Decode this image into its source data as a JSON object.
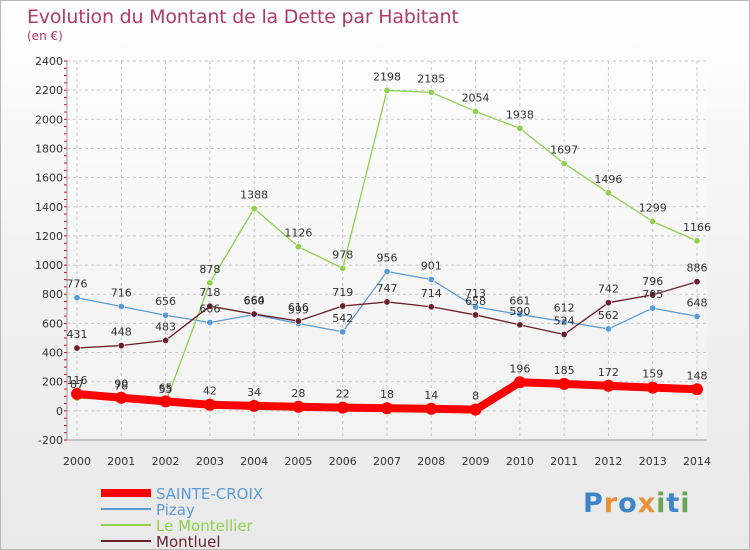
{
  "title": "Evolution du Montant de la Dette par Habitant",
  "subtitle": "(en €)",
  "logo_text": "Proxiti",
  "chart_data": {
    "type": "line",
    "title": "Evolution du Montant de la Dette par Habitant",
    "ylabel": "(en €)",
    "xlabel": "",
    "x": [
      "2000",
      "2001",
      "2002",
      "2003",
      "2004",
      "2005",
      "2006",
      "2007",
      "2008",
      "2009",
      "2010",
      "2011",
      "2012",
      "2013",
      "2014"
    ],
    "ylim": [
      -200,
      2400
    ],
    "yticks": [
      -200,
      0,
      200,
      400,
      600,
      800,
      1000,
      1200,
      1400,
      1600,
      1800,
      2000,
      2200,
      2400
    ],
    "grid": true,
    "legend_position": "bottom-left",
    "series": [
      {
        "name": "SAINTE-CROIX",
        "color": "#ff0000",
        "values": [
          116,
          90,
          65,
          42,
          34,
          28,
          22,
          18,
          14,
          8,
          196,
          185,
          172,
          159,
          148
        ]
      },
      {
        "name": "Pizay",
        "color": "#5b9bd5",
        "values": [
          776,
          716,
          656,
          606,
          660,
          599,
          542,
          956,
          901,
          713,
          661,
          612,
          562,
          705,
          648
        ]
      },
      {
        "name": "Le Montellier",
        "color": "#8fd14f",
        "values": [
          87,
          78,
          55,
          878,
          1388,
          1126,
          978,
          2198,
          2185,
          2054,
          1938,
          1697,
          1496,
          1299,
          1166
        ]
      },
      {
        "name": "Montluel",
        "color": "#6b1f2e",
        "values": [
          431,
          448,
          483,
          718,
          664,
          616,
          719,
          747,
          714,
          658,
          590,
          524,
          742,
          796,
          886
        ]
      }
    ]
  }
}
